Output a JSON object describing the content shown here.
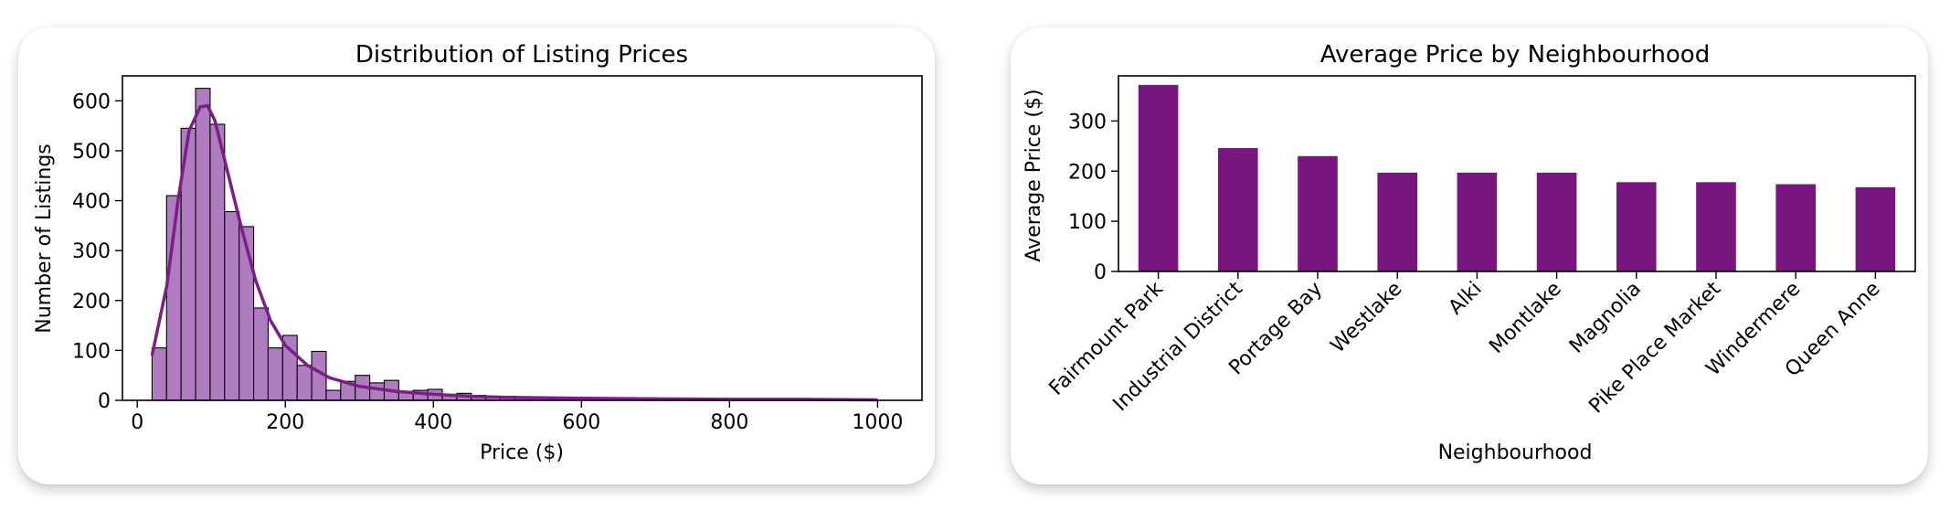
{
  "chart_data": [
    {
      "type": "bar",
      "subtype": "histogram_with_kde",
      "title": "Distribution of Listing Prices",
      "xlabel": "Price ($)",
      "ylabel": "Number of Listings",
      "xlim": [
        -20,
        1060
      ],
      "ylim": [
        0,
        650
      ],
      "xticks": [
        0,
        200,
        400,
        600,
        800,
        1000
      ],
      "yticks": [
        0,
        100,
        200,
        300,
        400,
        500,
        600
      ],
      "bin_width": 19.6,
      "bin_start": 20,
      "counts": [
        105,
        410,
        545,
        625,
        553,
        378,
        348,
        185,
        105,
        130,
        70,
        98,
        20,
        38,
        50,
        35,
        40,
        18,
        20,
        22,
        12,
        14,
        10,
        8,
        8,
        6,
        5,
        5,
        4,
        4,
        3,
        3,
        2,
        3,
        2,
        2,
        2,
        2,
        1,
        2,
        1,
        1,
        1,
        2,
        1,
        1,
        1,
        1,
        1,
        1
      ],
      "kde": {
        "x": [
          20,
          40,
          55,
          70,
          85,
          95,
          105,
          120,
          140,
          160,
          180,
          200,
          230,
          260,
          300,
          350,
          400,
          450,
          500,
          600,
          700,
          800,
          900,
          1000
        ],
        "y": [
          90,
          230,
          400,
          540,
          588,
          590,
          560,
          470,
          350,
          240,
          160,
          110,
          70,
          45,
          28,
          18,
          12,
          8,
          6,
          4,
          3,
          2,
          2,
          1
        ]
      },
      "bar_color": "#b07cc0",
      "line_color": "#7b1f86",
      "grid": false
    },
    {
      "type": "bar",
      "title": "Average Price by Neighbourhood",
      "xlabel": "Neighbourhood",
      "ylabel": "Average Price ($)",
      "categories": [
        "Fairmount Park",
        "Industrial District",
        "Portage Bay",
        "Westlake",
        "Alki",
        "Montlake",
        "Magnolia",
        "Pike Place Market",
        "Windermere",
        "Queen Anne"
      ],
      "values": [
        372,
        246,
        230,
        197,
        197,
        197,
        178,
        178,
        174,
        168
      ],
      "ylim": [
        0,
        390
      ],
      "yticks": [
        0,
        100,
        200,
        300
      ],
      "bar_color": "#78157e",
      "grid": false
    }
  ]
}
